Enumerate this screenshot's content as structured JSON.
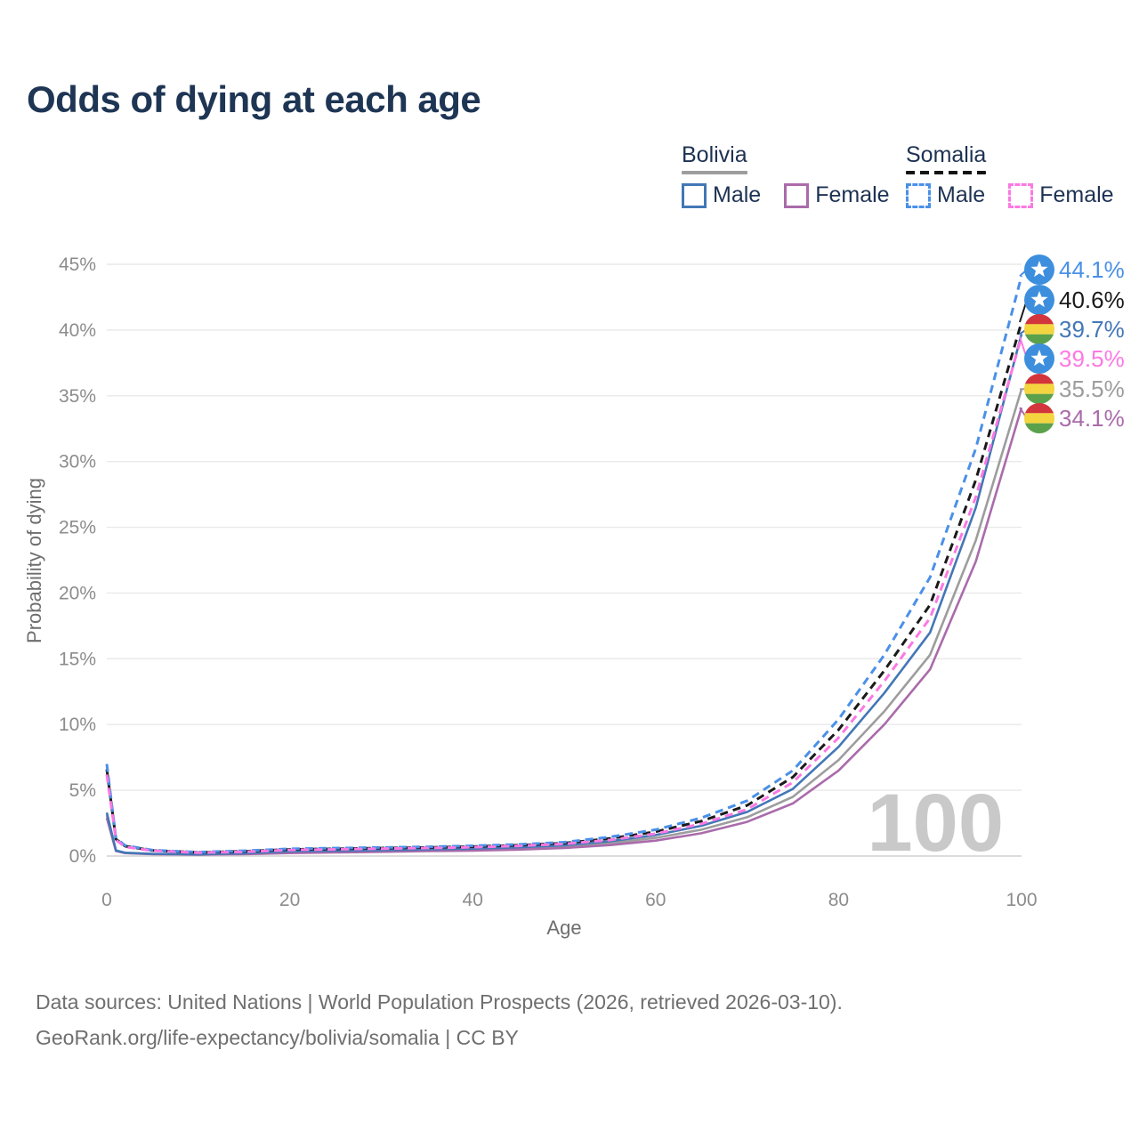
{
  "title": "Odds of dying at each age",
  "legend": {
    "groups": [
      {
        "label": "Bolivia",
        "line_style": "solid",
        "underline_color": "#9d9d9d",
        "items": [
          {
            "label": "Male",
            "color": "#4377b6",
            "style": "solid"
          },
          {
            "label": "Female",
            "color": "#aa6bab",
            "style": "solid"
          }
        ]
      },
      {
        "label": "Somalia",
        "line_style": "dashed",
        "underline_color": "#141414",
        "items": [
          {
            "label": "Male",
            "color": "#4a90e8",
            "style": "dashed"
          },
          {
            "label": "Female",
            "color": "#fb79e3",
            "style": "dashed"
          }
        ]
      }
    ]
  },
  "chart_data": {
    "type": "line",
    "title": "Odds of dying at each age",
    "xlabel": "Age",
    "ylabel": "Probability of dying",
    "xlim": [
      0,
      100
    ],
    "ylim": [
      0,
      45
    ],
    "xticks": [
      0,
      20,
      40,
      60,
      80,
      100
    ],
    "yticks": [
      "0%",
      "5%",
      "10%",
      "15%",
      "20%",
      "25%",
      "30%",
      "35%",
      "40%",
      "45%"
    ],
    "grid": "horizontal",
    "legend_position": "top-right",
    "hover_age_watermark": "100",
    "ages": [
      0,
      1,
      2,
      5,
      10,
      15,
      20,
      25,
      30,
      35,
      40,
      45,
      50,
      55,
      60,
      65,
      70,
      75,
      80,
      85,
      90,
      95,
      100
    ],
    "series": [
      {
        "id": "bolivia-all",
        "name": "Bolivia — Both sexes",
        "country": "Bolivia",
        "sex": "Both",
        "style": "solid",
        "color": "#9d9d9d",
        "flag": "bolivia",
        "end_label": "35.5%",
        "values": [
          3.1,
          0.4,
          0.23,
          0.15,
          0.11,
          0.17,
          0.28,
          0.33,
          0.38,
          0.43,
          0.48,
          0.57,
          0.71,
          0.97,
          1.38,
          2.0,
          2.95,
          4.5,
          7.3,
          11.0,
          15.3,
          24.0,
          35.5
        ]
      },
      {
        "id": "bolivia-female",
        "name": "Bolivia — Female",
        "country": "Bolivia",
        "sex": "Female",
        "style": "solid",
        "color": "#aa6bab",
        "flag": "bolivia",
        "end_label": "34.1%",
        "values": [
          2.9,
          0.38,
          0.22,
          0.14,
          0.1,
          0.14,
          0.22,
          0.27,
          0.32,
          0.37,
          0.41,
          0.49,
          0.61,
          0.83,
          1.17,
          1.73,
          2.6,
          4.0,
          6.5,
          10.0,
          14.2,
          22.4,
          34.1
        ]
      },
      {
        "id": "bolivia-male",
        "name": "Bolivia — Male",
        "country": "Bolivia",
        "sex": "Male",
        "style": "solid",
        "color": "#4377b6",
        "flag": "bolivia",
        "end_label": "39.7%",
        "values": [
          3.3,
          0.42,
          0.25,
          0.16,
          0.13,
          0.21,
          0.35,
          0.4,
          0.45,
          0.5,
          0.56,
          0.66,
          0.82,
          1.12,
          1.6,
          2.3,
          3.35,
          5.1,
          8.3,
          12.4,
          17.0,
          26.5,
          39.7
        ]
      },
      {
        "id": "somalia-all",
        "name": "Somalia — Both sexes",
        "country": "Somalia",
        "sex": "Both",
        "style": "dashed",
        "color": "#1a1a1a",
        "flag": "somalia",
        "end_label": "40.6%",
        "values": [
          6.6,
          1.28,
          0.75,
          0.42,
          0.28,
          0.36,
          0.5,
          0.55,
          0.6,
          0.65,
          0.72,
          0.82,
          0.98,
          1.33,
          1.85,
          2.65,
          3.85,
          6.0,
          9.6,
          14.1,
          19.1,
          28.6,
          40.6
        ]
      },
      {
        "id": "somalia-male",
        "name": "Somalia — Male",
        "country": "Somalia",
        "sex": "Male",
        "style": "dashed",
        "color": "#4a90e8",
        "flag": "somalia",
        "end_label": "44.1%",
        "values": [
          7.0,
          1.35,
          0.8,
          0.45,
          0.3,
          0.4,
          0.55,
          0.6,
          0.65,
          0.7,
          0.78,
          0.88,
          1.05,
          1.45,
          2.0,
          2.9,
          4.2,
          6.5,
          10.4,
          15.3,
          21.2,
          31.0,
          44.1
        ]
      },
      {
        "id": "somalia-female",
        "name": "Somalia — Female",
        "country": "Somalia",
        "sex": "Female",
        "style": "dashed",
        "color": "#fb79e3",
        "flag": "somalia",
        "end_label": "39.5%",
        "values": [
          6.2,
          1.22,
          0.7,
          0.4,
          0.26,
          0.32,
          0.46,
          0.51,
          0.56,
          0.61,
          0.67,
          0.77,
          0.92,
          1.22,
          1.7,
          2.45,
          3.55,
          5.6,
          9.0,
          13.3,
          18.1,
          27.3,
          39.5
        ]
      }
    ],
    "flag_colors": {
      "somalia_blue": "#3d8fde",
      "bolivia_red": "#d2353b",
      "bolivia_yellow": "#f4d43f",
      "bolivia_green": "#5ba14b"
    }
  },
  "footer": {
    "line1": "Data sources: United Nations | World Population Prospects (2026, retrieved 2026-03-10).",
    "line2": "GeoRank.org/life-expectancy/bolivia/somalia | CC BY"
  }
}
